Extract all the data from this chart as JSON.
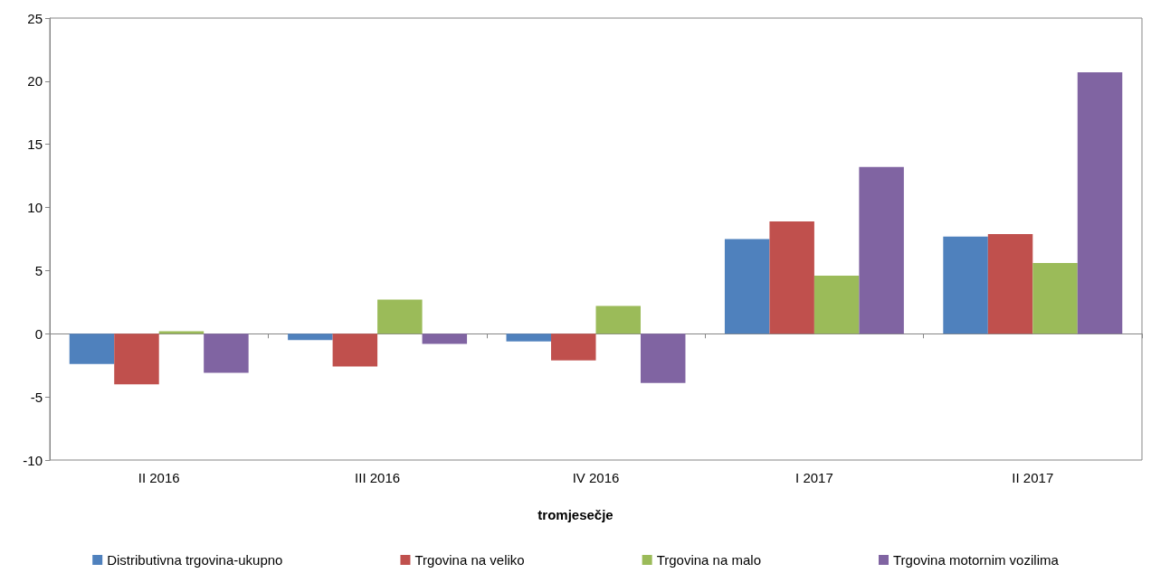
{
  "chart_data": {
    "type": "bar",
    "xlabel": "tromjesečje",
    "categories": [
      "II 2016",
      "III 2016",
      "IV 2016",
      "I 2017",
      "II 2017"
    ],
    "series": [
      {
        "name": "Distributivna trgovina-ukupno",
        "color": "#4f81bd",
        "values": [
          -2.4,
          -0.5,
          -0.6,
          7.5,
          7.7
        ]
      },
      {
        "name": "Trgovina na veliko",
        "color": "#c0504d",
        "values": [
          -4.0,
          -2.6,
          -2.1,
          8.9,
          7.9
        ]
      },
      {
        "name": "Trgovina na malo",
        "color": "#9bbb59",
        "values": [
          0.2,
          2.7,
          2.2,
          4.6,
          5.6
        ]
      },
      {
        "name": "Trgovina motornim vozilima",
        "color": "#8064a2",
        "values": [
          -3.1,
          -0.8,
          -3.9,
          13.2,
          20.7
        ]
      }
    ],
    "ylim": [
      -10,
      25
    ],
    "yticks": [
      -10,
      -5,
      0,
      5,
      10,
      15,
      20,
      25
    ],
    "legend": "bottom"
  }
}
